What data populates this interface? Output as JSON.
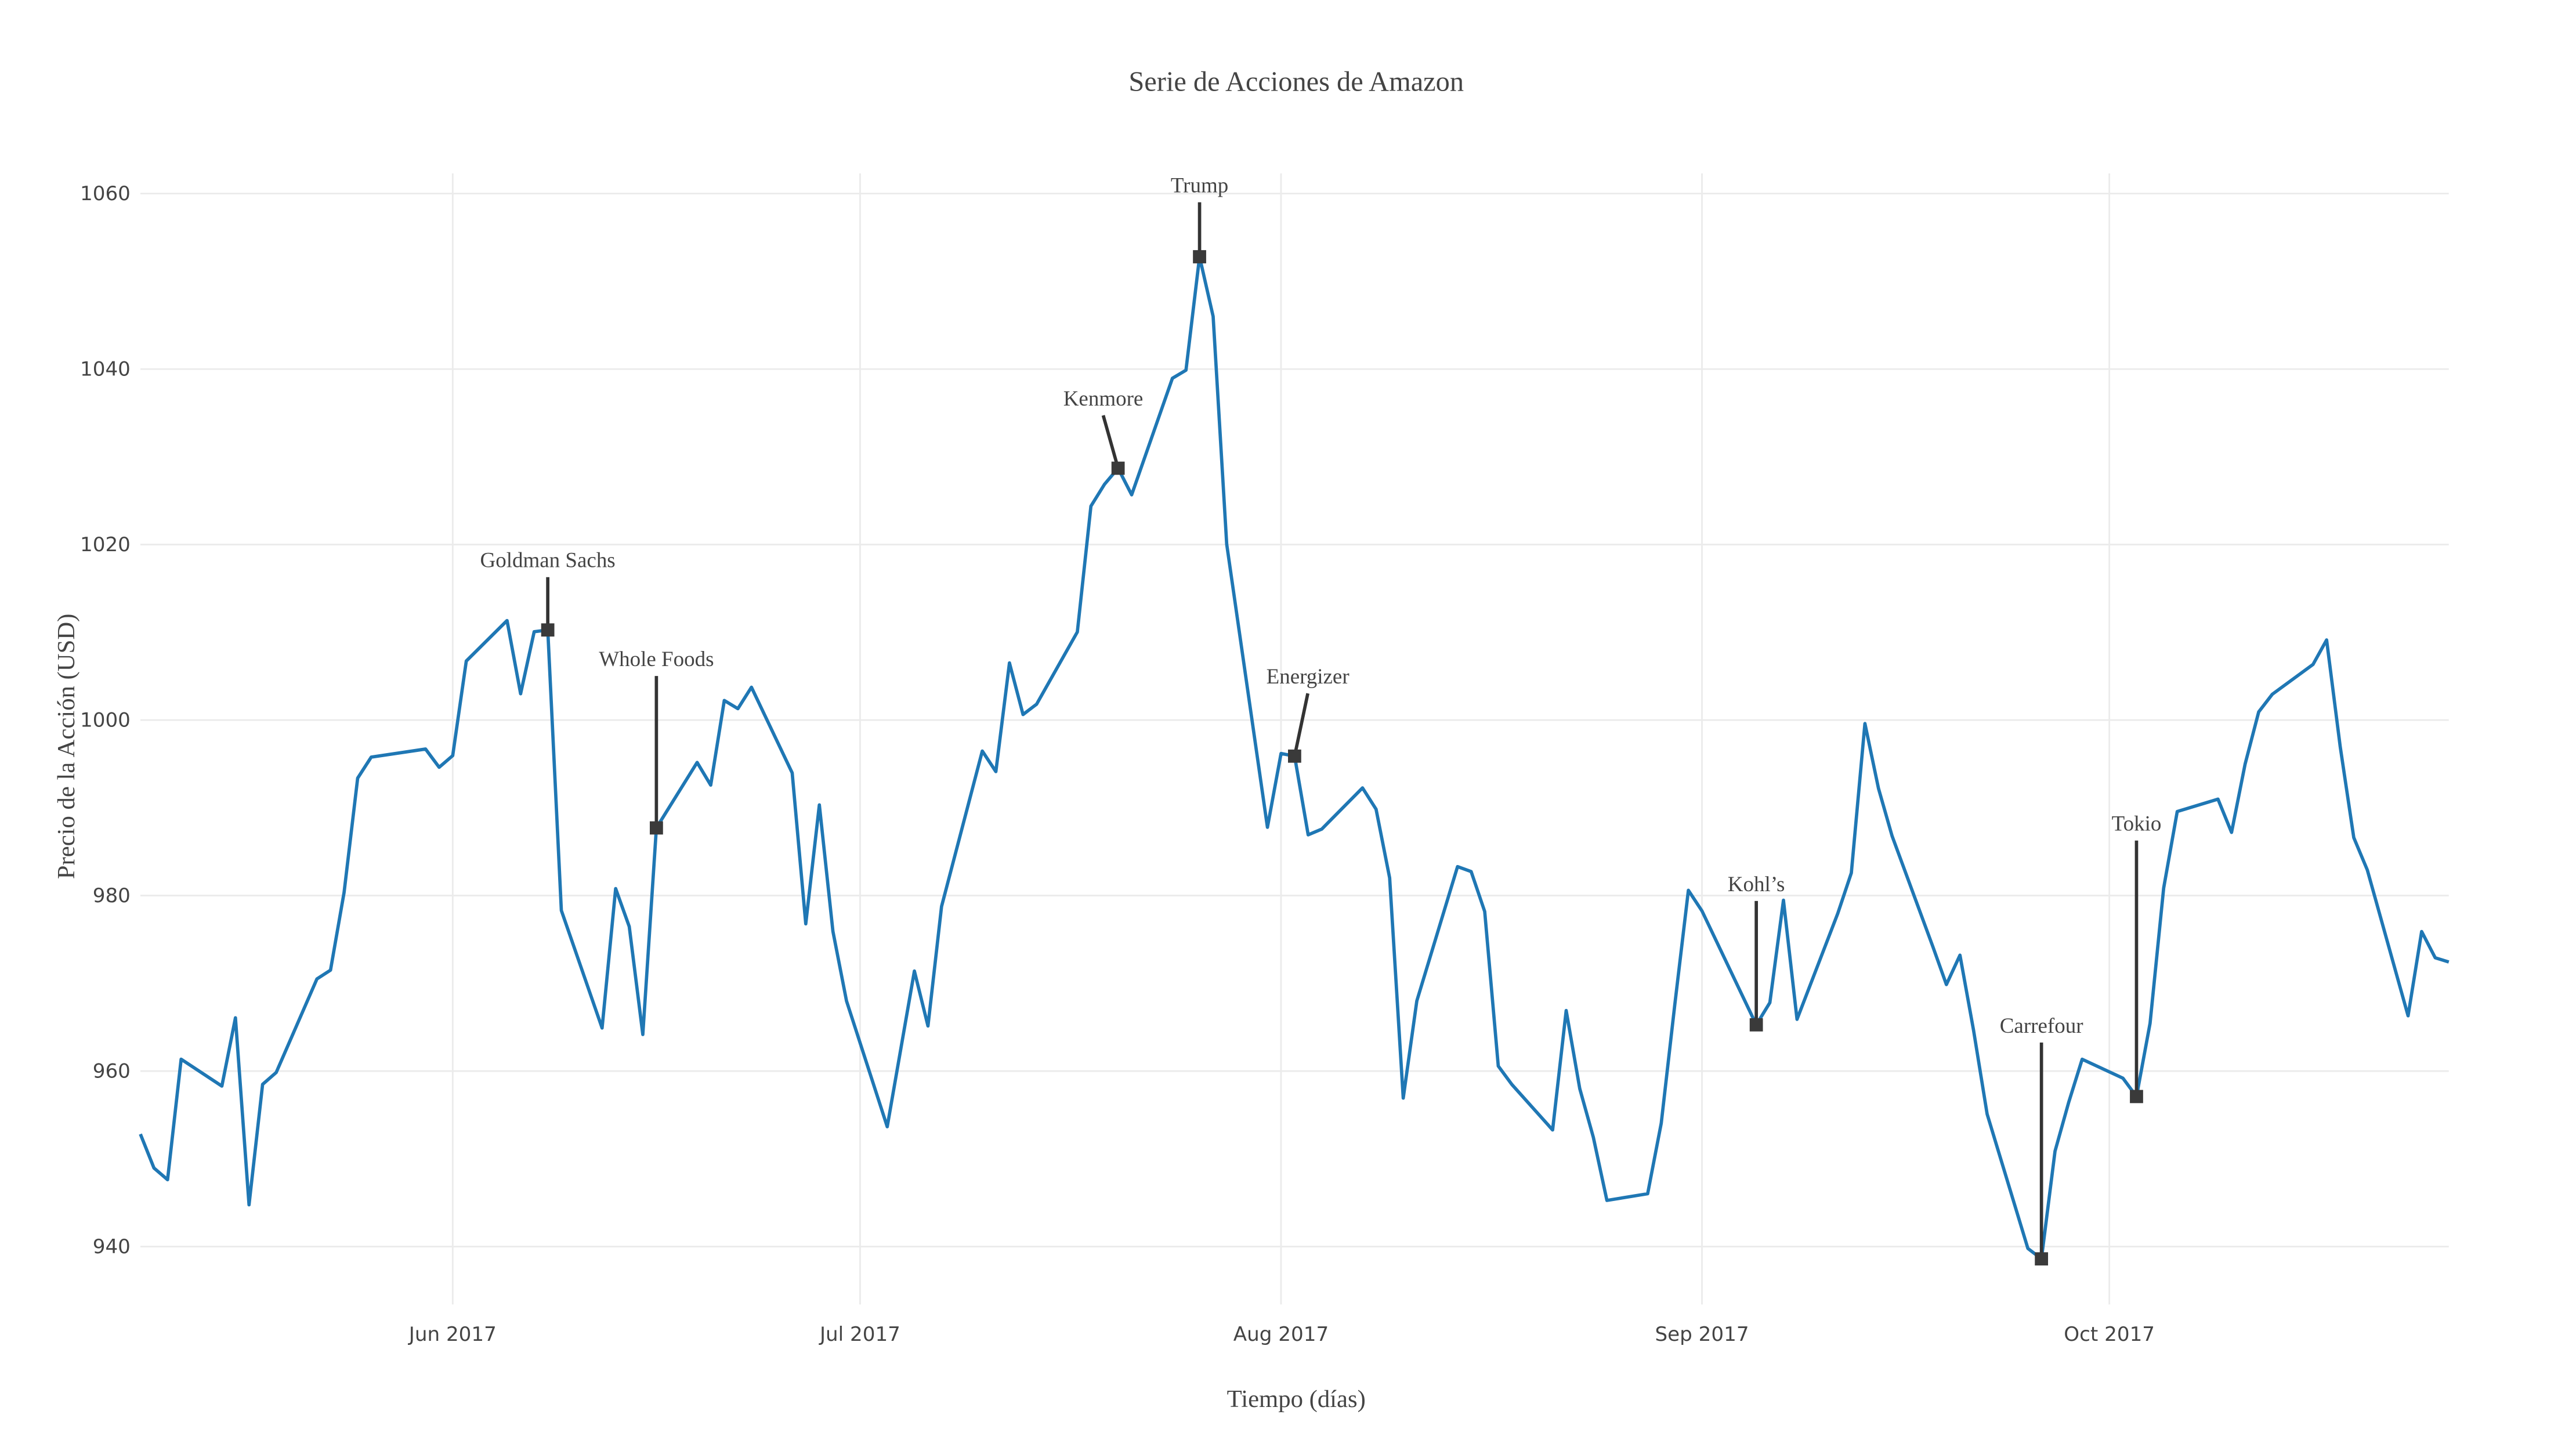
{
  "chart_data": {
    "type": "line",
    "title": "Serie de Acciones de Amazon",
    "x_label": "Tiempo (días)",
    "y_label": "Precio de la Acción (USD)",
    "color": "#1f77b4",
    "grid": true,
    "xlim": [
      "2017-05-09",
      "2017-10-26"
    ],
    "xticks": [
      {
        "value": "2017-06-01",
        "label": "Jun 2017"
      },
      {
        "value": "2017-07-01",
        "label": "Jul 2017"
      },
      {
        "value": "2017-08-01",
        "label": "Aug 2017"
      },
      {
        "value": "2017-09-01",
        "label": "Sep 2017"
      },
      {
        "value": "2017-10-01",
        "label": "Oct 2017"
      }
    ],
    "ylim": [
      933.4,
      1062.3
    ],
    "yticks": [
      940,
      960,
      980,
      1000,
      1020,
      1040,
      1060
    ],
    "x": [
      "2017-05-09",
      "2017-05-10",
      "2017-05-11",
      "2017-05-12",
      "2017-05-15",
      "2017-05-16",
      "2017-05-17",
      "2017-05-18",
      "2017-05-19",
      "2017-05-22",
      "2017-05-23",
      "2017-05-24",
      "2017-05-25",
      "2017-05-26",
      "2017-05-30",
      "2017-05-31",
      "2017-06-01",
      "2017-06-02",
      "2017-06-05",
      "2017-06-06",
      "2017-06-07",
      "2017-06-08",
      "2017-06-09",
      "2017-06-12",
      "2017-06-13",
      "2017-06-14",
      "2017-06-15",
      "2017-06-16",
      "2017-06-19",
      "2017-06-20",
      "2017-06-21",
      "2017-06-22",
      "2017-06-23",
      "2017-06-26",
      "2017-06-27",
      "2017-06-28",
      "2017-06-29",
      "2017-06-30",
      "2017-07-03",
      "2017-07-05",
      "2017-07-06",
      "2017-07-07",
      "2017-07-10",
      "2017-07-11",
      "2017-07-12",
      "2017-07-13",
      "2017-07-14",
      "2017-07-17",
      "2017-07-18",
      "2017-07-19",
      "2017-07-20",
      "2017-07-21",
      "2017-07-24",
      "2017-07-25",
      "2017-07-26",
      "2017-07-27",
      "2017-07-28",
      "2017-07-31",
      "2017-08-01",
      "2017-08-02",
      "2017-08-03",
      "2017-08-04",
      "2017-08-07",
      "2017-08-08",
      "2017-08-09",
      "2017-08-10",
      "2017-08-11",
      "2017-08-14",
      "2017-08-15",
      "2017-08-16",
      "2017-08-17",
      "2017-08-18",
      "2017-08-21",
      "2017-08-22",
      "2017-08-23",
      "2017-08-24",
      "2017-08-25",
      "2017-08-28",
      "2017-08-29",
      "2017-08-30",
      "2017-08-31",
      "2017-09-01",
      "2017-09-05",
      "2017-09-06",
      "2017-09-07",
      "2017-09-08",
      "2017-09-11",
      "2017-09-12",
      "2017-09-13",
      "2017-09-14",
      "2017-09-15",
      "2017-09-18",
      "2017-09-19",
      "2017-09-20",
      "2017-09-21",
      "2017-09-22",
      "2017-09-25",
      "2017-09-26",
      "2017-09-27",
      "2017-09-28",
      "2017-09-29",
      "2017-10-02",
      "2017-10-03",
      "2017-10-04",
      "2017-10-05",
      "2017-10-06",
      "2017-10-09",
      "2017-10-10",
      "2017-10-11",
      "2017-10-12",
      "2017-10-13",
      "2017-10-16",
      "2017-10-17",
      "2017-10-18",
      "2017-10-19",
      "2017-10-20",
      "2017-10-23",
      "2017-10-24",
      "2017-10-25",
      "2017-10-26"
    ],
    "values": [
      952.82,
      948.95,
      947.62,
      961.35,
      958.29,
      966.07,
      944.76,
      958.49,
      959.84,
      970.5,
      971.5,
      980.35,
      993.38,
      995.78,
      996.7,
      994.62,
      995.95,
      1006.73,
      1011.34,
      1003,
      1010.07,
      1010.27,
      978.31,
      964.91,
      980.79,
      976.47,
      964.17,
      987.71,
      995.17,
      992.59,
      1002.23,
      1001.3,
      1003.74,
      993.98,
      976.78,
      990.33,
      975.93,
      968,
      953.66,
      971.4,
      965.14,
      978.76,
      996.47,
      994.13,
      1006.51,
      1000.63,
      1001.81,
      1010.04,
      1024.38,
      1026.87,
      1028.7,
      1025.67,
      1038.95,
      1039.87,
      1052.8,
      1046,
      1020.04,
      987.78,
      996.19,
      995.89,
      986.92,
      987.58,
      992.27,
      989.84,
      982.01,
      956.92,
      967.99,
      983.3,
      982.74,
      978.18,
      960.57,
      958.47,
      953.29,
      966.9,
      958,
      952.45,
      945.26,
      946.02,
      954.06,
      967.59,
      980.6,
      978.25,
      965.27,
      967.8,
      979.47,
      965.9,
      977.96,
      982.58,
      999.6,
      992.21,
      986.79,
      974.19,
      969.86,
      973.21,
      964.65,
      955.1,
      939.79,
      938.6,
      950.87,
      956.4,
      961.35,
      959.19,
      957.1,
      965.45,
      980.85,
      989.58,
      990.99,
      987.2,
      995,
      1000.93,
      1002.94,
      1006.34,
      1009.13,
      997,
      986.61,
      982.91,
      966.3,
      975.9,
      972.91,
      972.43
    ],
    "annotations": [
      {
        "text": "Goldman Sachs",
        "x": "2017-06-08",
        "y": 1010.27
      },
      {
        "text": "Whole Foods",
        "x": "2017-06-16",
        "y": 987.71
      },
      {
        "text": "Kenmore",
        "x": "2017-07-20",
        "y": 1028.7
      },
      {
        "text": "Trump",
        "x": "2017-07-26",
        "y": 1052.8
      },
      {
        "text": "Energizer",
        "x": "2017-08-02",
        "y": 995.89
      },
      {
        "text": "Kohl’s",
        "x": "2017-09-05",
        "y": 965.27
      },
      {
        "text": "Carrefour",
        "x": "2017-09-26",
        "y": 938.6
      },
      {
        "text": "Tokio",
        "x": "2017-10-03",
        "y": 957.1
      }
    ]
  }
}
